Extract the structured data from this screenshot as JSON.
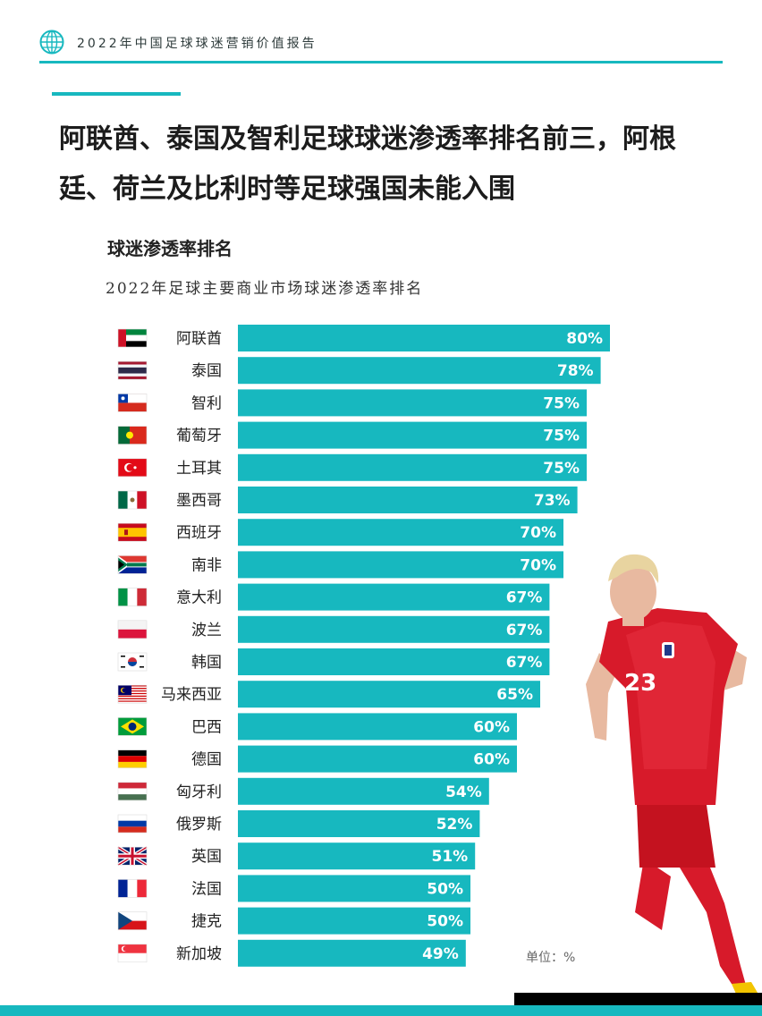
{
  "header": {
    "title": "2022年中国足球球迷营销价值报告"
  },
  "headline": {
    "line1": "阿联酋、泰国及智利足球球迷渗透率排名前三，阿根",
    "line2": "廷、荷兰及比利时等足球强国未能入围"
  },
  "section_title": "球迷渗透率排名",
  "unit_label": "单位：%",
  "colors": {
    "accent": "#17b8bf",
    "bar": "#17b8bf",
    "bar_label": "#ffffff"
  },
  "chart_data": {
    "type": "bar",
    "orientation": "horizontal",
    "title": "2022年足球主要商业市场球迷渗透率排名",
    "categories": [
      "阿联酋",
      "泰国",
      "智利",
      "葡萄牙",
      "土耳其",
      "墨西哥",
      "西班牙",
      "南非",
      "意大利",
      "波兰",
      "韩国",
      "马来西亚",
      "巴西",
      "德国",
      "匈牙利",
      "俄罗斯",
      "英国",
      "法国",
      "捷克",
      "新加坡"
    ],
    "values": [
      80,
      78,
      75,
      75,
      75,
      73,
      70,
      70,
      67,
      67,
      67,
      65,
      60,
      60,
      54,
      52,
      51,
      50,
      50,
      49
    ],
    "value_labels": [
      "80%",
      "78%",
      "75%",
      "75%",
      "75%",
      "73%",
      "70%",
      "70%",
      "67%",
      "67%",
      "67%",
      "65%",
      "60%",
      "60%",
      "54%",
      "52%",
      "51%",
      "50%",
      "50%",
      "49%"
    ],
    "flag_icons": [
      "uae-flag-icon",
      "thailand-flag-icon",
      "chile-flag-icon",
      "portugal-flag-icon",
      "turkey-flag-icon",
      "mexico-flag-icon",
      "spain-flag-icon",
      "south-africa-flag-icon",
      "italy-flag-icon",
      "poland-flag-icon",
      "korea-flag-icon",
      "malaysia-flag-icon",
      "brazil-flag-icon",
      "germany-flag-icon",
      "hungary-flag-icon",
      "russia-flag-icon",
      "uk-flag-icon",
      "france-flag-icon",
      "czech-flag-icon",
      "singapore-flag-icon"
    ],
    "xlim": [
      0,
      100
    ],
    "grid": false,
    "legend": "none"
  },
  "player": {
    "jersey_number": "23"
  }
}
